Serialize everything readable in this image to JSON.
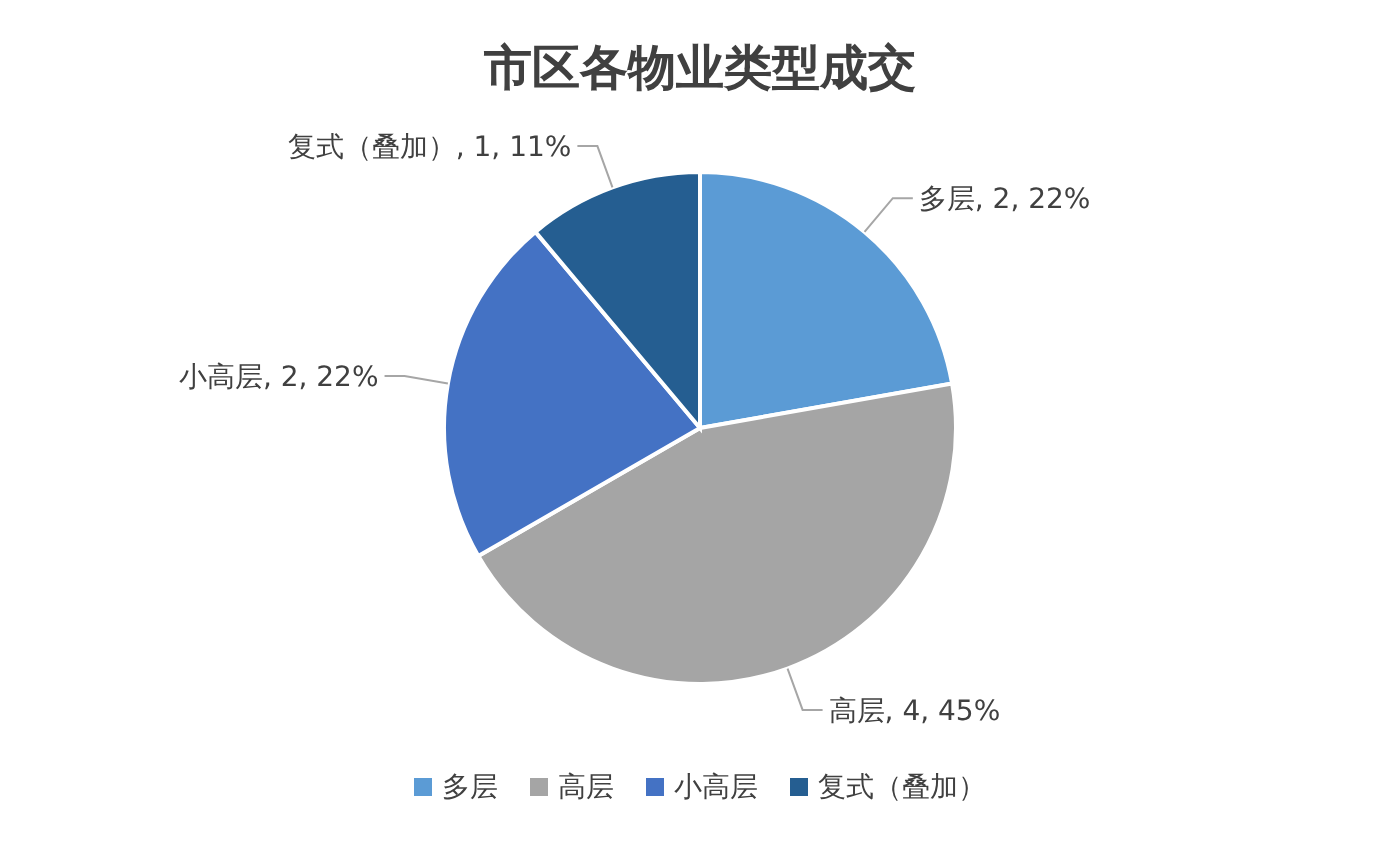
{
  "chart_data": {
    "type": "pie",
    "title": "市区各物业类型成交",
    "categories": [
      "多层",
      "高层",
      "小高层",
      "复式（叠加）"
    ],
    "values": [
      2,
      4,
      2,
      1
    ],
    "colors": [
      "#5b9bd5",
      "#a5a5a5",
      "#4472c4",
      "#255e91"
    ],
    "value_labels": [
      "多层, 2, 22%",
      "高层, 4, 45%",
      "小高层, 2, 22%",
      "复式（叠加）, 1, 11%"
    ],
    "legend": "bottom"
  }
}
